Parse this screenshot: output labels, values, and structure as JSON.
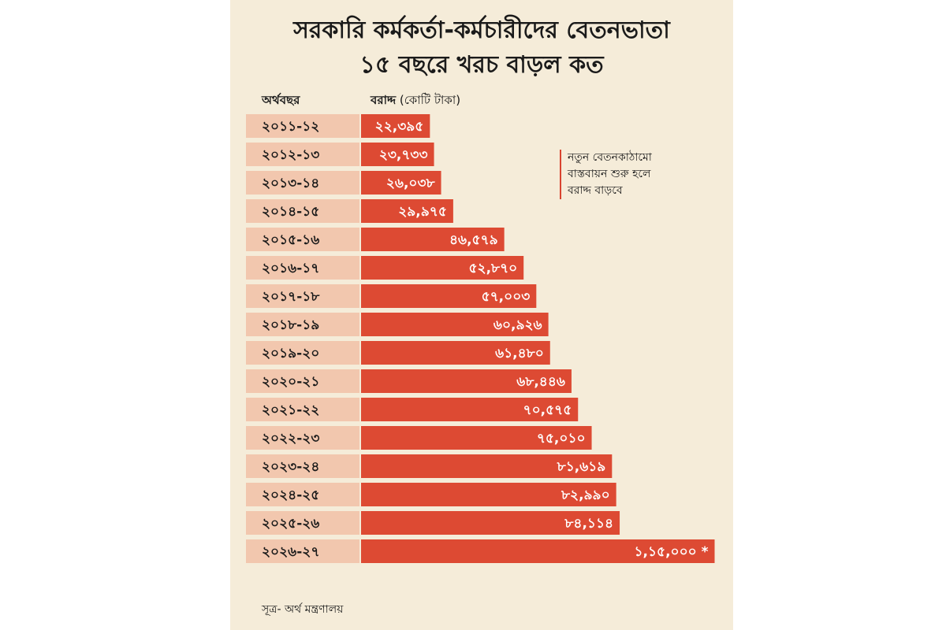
{
  "chart_data": {
    "type": "bar",
    "orientation": "horizontal",
    "title": "সরকারি কর্মকর্তা-কর্মচারীদের বেতনভাতা",
    "subtitle": "১৫ বছরে খরচ বাড়ল কত",
    "category_header": "অর্থবছর",
    "value_header_bold": "বরাদ্দ",
    "value_header_unit": "(কোটি টাকা)",
    "categories": [
      "২০১১-১২",
      "২০১২-১৩",
      "২০১৩-১৪",
      "২০১৪-১৫",
      "২০১৫-১৬",
      "২০১৬-১৭",
      "২০১৭-১৮",
      "২০১৮-১৯",
      "২০১৯-২০",
      "২০২০-২১",
      "২০২১-২২",
      "২০২২-২৩",
      "২০২৩-২৪",
      "২০২৪-২৫",
      "২০২৫-২৬",
      "২০২৬-২৭"
    ],
    "values": [
      22395,
      23733,
      26038,
      29975,
      46579,
      52870,
      57003,
      60926,
      61480,
      68446,
      70575,
      75010,
      81619,
      82990,
      84114,
      115000
    ],
    "value_labels": [
      "২২,৩৯৫",
      "২৩,৭৩৩",
      "২৬,০৩৮",
      "২৯,৯৭৫",
      "৪৬,৫৭৯",
      "৫২,৮৭০",
      "৫৭,০০৩",
      "৬০,৯২৬",
      "৬১,৪৮০",
      "৬৮,৪৪৬",
      "৭০,৫৭৫",
      "৭৫,০১০",
      "৮১,৬১৯",
      "৮২,৯৯০",
      "৮৪,১১৪",
      "১,১৫,০০০ *"
    ],
    "annotation": [
      "নতুন বেতনকাঠামো",
      "বাস্তবায়ন শুরু হলে",
      "বরাদ্দ বাড়বে"
    ],
    "source": "সূত্র- অর্থ মন্ত্রণালয়",
    "bar_color": "#dd4a33",
    "label_bg_color": "#f2c7ae",
    "background_color": "#f5ecd9"
  }
}
